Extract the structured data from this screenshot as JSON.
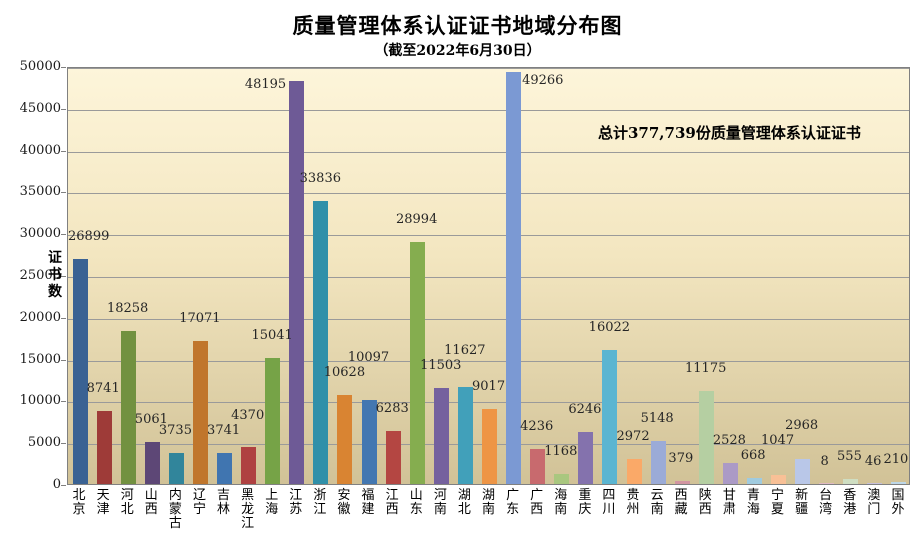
{
  "chart_data": {
    "type": "bar",
    "title": "质量管理体系认证证书地域分布图",
    "subtitle": "（截至2022年6月30日）",
    "annotation": "总计377,739份质量管理体系认证证书",
    "ylabel": "证书数",
    "categories": [
      "北京",
      "天津",
      "河北",
      "山西",
      "内蒙古",
      "辽宁",
      "吉林",
      "黑龙江",
      "上海",
      "江苏",
      "浙江",
      "安徽",
      "福建",
      "江西",
      "山东",
      "河南",
      "湖北",
      "湖南",
      "广东",
      "广西",
      "海南",
      "重庆",
      "四川",
      "贵州",
      "云南",
      "西藏",
      "陕西",
      "甘肃",
      "青海",
      "宁夏",
      "新疆",
      "台湾",
      "香港",
      "澳门",
      "国外"
    ],
    "values": [
      26899,
      8741,
      18258,
      5061,
      3735,
      17071,
      3741,
      4370,
      15041,
      48195,
      33836,
      10628,
      10097,
      6283,
      28994,
      11503,
      11627,
      9017,
      49266,
      4236,
      1168,
      6246,
      16022,
      2972,
      5148,
      379,
      11175,
      2528,
      668,
      1047,
      2968,
      8,
      555,
      46,
      210
    ],
    "bar_colors": [
      "#3A6293",
      "#9E3B38",
      "#729140",
      "#5D4776",
      "#31859B",
      "#C0762C",
      "#4075B0",
      "#AF4141",
      "#76A347",
      "#6E5A96",
      "#3090A9",
      "#D98432",
      "#4377B1",
      "#B44642",
      "#85AD4F",
      "#75619E",
      "#41A0BA",
      "#EE9545",
      "#7B99D3",
      "#C86A6E",
      "#A9C77F",
      "#8472AD",
      "#5BB5D1",
      "#FAA968",
      "#9BABD7",
      "#D295A1",
      "#B5CFA2",
      "#AB9AC6",
      "#A0CBDF",
      "#F8C096",
      "#B9C7E8",
      "#E0BAC4",
      "#CFDEC2",
      "#C6BFDB",
      "#BDD7E8"
    ],
    "ylim": [
      0,
      50000
    ],
    "yticks": [
      0,
      5000,
      10000,
      15000,
      20000,
      25000,
      30000,
      35000,
      40000,
      45000,
      50000
    ],
    "grid": "horizontal gridlines on",
    "legend": "none",
    "label_side_overrides": {
      "9": "left",
      "18": "right"
    },
    "colors": {
      "background": "#FFFFFF",
      "plot_bg_top": "#FDF5DA",
      "plot_bg_mid": "#F3E6C0",
      "plot_bg_bottom": "#D1C297",
      "gridline": "#9A9A9A",
      "plot_border": "#808080",
      "title_text": "#000000",
      "data_label_text": "#262626"
    }
  }
}
